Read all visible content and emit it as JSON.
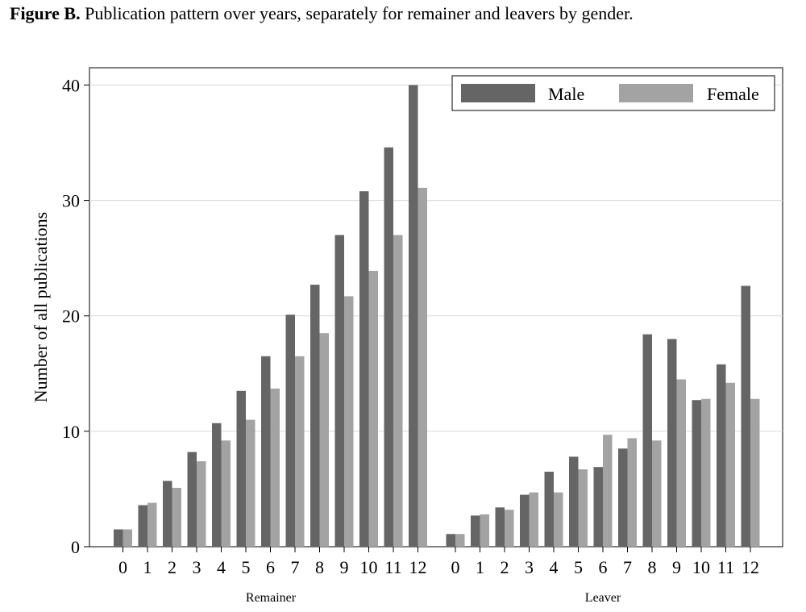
{
  "caption": {
    "label": "Figure B.",
    "text": "Publication pattern over years, separately for remainer and leavers by gender."
  },
  "chart_data": {
    "type": "bar",
    "ylabel": "Number of all publications",
    "ylim": [
      0,
      41.5
    ],
    "yticks": [
      0,
      10,
      20,
      30,
      40
    ],
    "grid": true,
    "legend_position": "top-right",
    "colors": {
      "Male": "#656565",
      "Female": "#a3a3a3"
    },
    "groups": [
      {
        "name": "Remainer",
        "categories": [
          "0",
          "1",
          "2",
          "3",
          "4",
          "5",
          "6",
          "7",
          "8",
          "9",
          "10",
          "11",
          "12"
        ],
        "series": [
          {
            "name": "Male",
            "values": [
              1.5,
              3.6,
              5.7,
              8.2,
              10.7,
              13.5,
              16.5,
              20.1,
              22.7,
              27.0,
              30.8,
              34.6,
              40.0
            ]
          },
          {
            "name": "Female",
            "values": [
              1.5,
              3.8,
              5.1,
              7.4,
              9.2,
              11.0,
              13.7,
              16.5,
              18.5,
              21.7,
              23.9,
              27.0,
              31.1
            ]
          }
        ]
      },
      {
        "name": "Leaver",
        "categories": [
          "0",
          "1",
          "2",
          "3",
          "4",
          "5",
          "6",
          "7",
          "8",
          "9",
          "10",
          "11",
          "12"
        ],
        "series": [
          {
            "name": "Male",
            "values": [
              1.1,
              2.7,
              3.4,
              4.5,
              6.5,
              7.8,
              6.9,
              8.5,
              18.4,
              18.0,
              12.7,
              15.8,
              22.6
            ]
          },
          {
            "name": "Female",
            "values": [
              1.1,
              2.8,
              3.2,
              4.7,
              4.7,
              6.7,
              9.7,
              9.4,
              9.2,
              14.5,
              12.8,
              14.2,
              12.8
            ]
          }
        ]
      }
    ]
  }
}
